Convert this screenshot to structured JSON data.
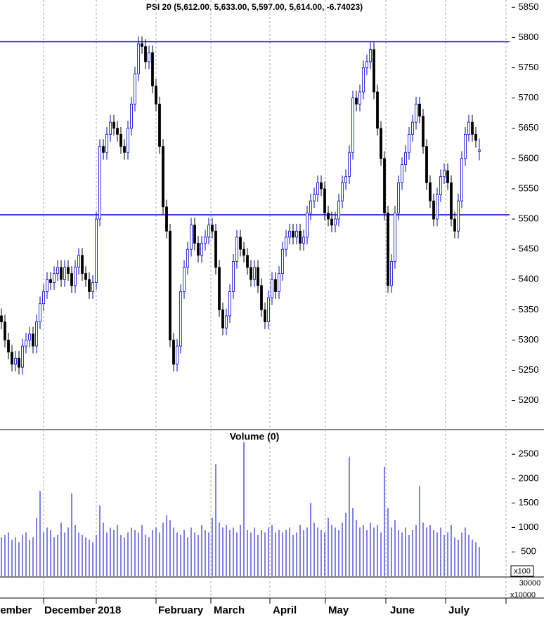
{
  "chart_data": [
    {
      "type": "candlestick",
      "title": "PSI 20 (5,612.00, 5,633.00, 5,597.00, 5,614.00, -6.74023)",
      "x_labels": [
        "vember",
        "December",
        "2018",
        "February",
        "March",
        "April",
        "May",
        "June",
        "July"
      ],
      "open": [
        5340,
        5330,
        5300,
        5280,
        5260,
        5270,
        5255,
        5290,
        5300,
        5310,
        5290,
        5330,
        5360,
        5380,
        5400,
        5395,
        5410,
        5420,
        5400,
        5420,
        5410,
        5390,
        5420,
        5440,
        5410,
        5400,
        5380,
        5395,
        5500,
        5620,
        5610,
        5640,
        5660,
        5650,
        5640,
        5620,
        5610,
        5650,
        5690,
        5740,
        5790,
        5785,
        5760,
        5775,
        5720,
        5690,
        5620,
        5520,
        5480,
        5300,
        5260,
        5290,
        5380,
        5420,
        5450,
        5490,
        5460,
        5440,
        5460,
        5470,
        5490,
        5480,
        5420,
        5350,
        5320,
        5340,
        5380,
        5430,
        5470,
        5450,
        5440,
        5420,
        5400,
        5420,
        5390,
        5350,
        5330,
        5370,
        5400,
        5380,
        5410,
        5450,
        5470,
        5480,
        5470,
        5480,
        5460,
        5470,
        5510,
        5530,
        5540,
        5560,
        5550,
        5510,
        5500,
        5490,
        5500,
        5530,
        5560,
        5570,
        5610,
        5700,
        5690,
        5710,
        5750,
        5760,
        5780,
        5710,
        5650,
        5600,
        5510,
        5390,
        5430,
        5510,
        5560,
        5590,
        5610,
        5640,
        5660,
        5690,
        5670,
        5620,
        5560,
        5530,
        5500,
        5540,
        5570,
        5580,
        5560,
        5500,
        5480,
        5530,
        5600,
        5640,
        5660,
        5640,
        5612
      ],
      "high": [
        5352,
        5342,
        5312,
        5292,
        5282,
        5282,
        5302,
        5312,
        5322,
        5322,
        5342,
        5372,
        5392,
        5412,
        5412,
        5422,
        5432,
        5432,
        5432,
        5432,
        5422,
        5432,
        5452,
        5452,
        5422,
        5412,
        5407,
        5512,
        5632,
        5632,
        5652,
        5672,
        5672,
        5662,
        5652,
        5632,
        5662,
        5702,
        5752,
        5802,
        5802,
        5797,
        5787,
        5787,
        5732,
        5702,
        5632,
        5532,
        5492,
        5312,
        5302,
        5392,
        5432,
        5462,
        5502,
        5502,
        5472,
        5472,
        5482,
        5502,
        5502,
        5492,
        5432,
        5362,
        5352,
        5392,
        5442,
        5482,
        5482,
        5462,
        5452,
        5432,
        5432,
        5432,
        5402,
        5362,
        5382,
        5412,
        5412,
        5422,
        5462,
        5482,
        5492,
        5492,
        5492,
        5492,
        5482,
        5522,
        5542,
        5552,
        5572,
        5572,
        5562,
        5522,
        5512,
        5512,
        5542,
        5572,
        5582,
        5622,
        5712,
        5712,
        5722,
        5762,
        5772,
        5792,
        5792,
        5722,
        5662,
        5612,
        5522,
        5442,
        5522,
        5572,
        5602,
        5622,
        5652,
        5672,
        5702,
        5702,
        5682,
        5632,
        5572,
        5542,
        5552,
        5582,
        5592,
        5592,
        5572,
        5512,
        5542,
        5612,
        5652,
        5672,
        5672,
        5652,
        5633
      ],
      "low": [
        5318,
        5288,
        5268,
        5248,
        5248,
        5243,
        5243,
        5278,
        5288,
        5278,
        5278,
        5318,
        5348,
        5368,
        5383,
        5383,
        5398,
        5388,
        5388,
        5398,
        5378,
        5378,
        5408,
        5398,
        5388,
        5368,
        5368,
        5383,
        5488,
        5598,
        5598,
        5628,
        5638,
        5628,
        5608,
        5598,
        5598,
        5638,
        5678,
        5728,
        5773,
        5748,
        5748,
        5708,
        5678,
        5608,
        5508,
        5468,
        5288,
        5248,
        5248,
        5278,
        5368,
        5408,
        5438,
        5448,
        5428,
        5428,
        5448,
        5458,
        5468,
        5408,
        5338,
        5308,
        5308,
        5328,
        5368,
        5418,
        5438,
        5428,
        5408,
        5388,
        5388,
        5378,
        5338,
        5318,
        5318,
        5358,
        5368,
        5368,
        5398,
        5438,
        5458,
        5458,
        5458,
        5448,
        5448,
        5458,
        5498,
        5518,
        5528,
        5538,
        5498,
        5488,
        5478,
        5478,
        5488,
        5518,
        5548,
        5558,
        5598,
        5678,
        5678,
        5698,
        5738,
        5748,
        5698,
        5638,
        5588,
        5498,
        5378,
        5378,
        5418,
        5498,
        5548,
        5578,
        5598,
        5628,
        5648,
        5658,
        5608,
        5548,
        5518,
        5488,
        5488,
        5528,
        5558,
        5548,
        5488,
        5468,
        5468,
        5518,
        5588,
        5628,
        5628,
        5618,
        5597
      ],
      "close": [
        5330,
        5300,
        5280,
        5260,
        5270,
        5255,
        5290,
        5300,
        5310,
        5290,
        5330,
        5360,
        5380,
        5400,
        5395,
        5410,
        5420,
        5400,
        5420,
        5410,
        5390,
        5420,
        5440,
        5410,
        5400,
        5380,
        5395,
        5500,
        5620,
        5610,
        5640,
        5660,
        5650,
        5640,
        5620,
        5610,
        5650,
        5690,
        5740,
        5790,
        5785,
        5760,
        5775,
        5720,
        5690,
        5620,
        5520,
        5480,
        5300,
        5260,
        5290,
        5380,
        5420,
        5450,
        5490,
        5460,
        5440,
        5460,
        5470,
        5490,
        5480,
        5420,
        5350,
        5320,
        5340,
        5380,
        5430,
        5470,
        5450,
        5440,
        5420,
        5400,
        5420,
        5390,
        5350,
        5330,
        5370,
        5400,
        5380,
        5410,
        5450,
        5470,
        5480,
        5470,
        5480,
        5460,
        5470,
        5510,
        5530,
        5540,
        5560,
        5550,
        5510,
        5500,
        5490,
        5500,
        5530,
        5560,
        5570,
        5610,
        5700,
        5690,
        5710,
        5750,
        5760,
        5780,
        5710,
        5650,
        5600,
        5510,
        5390,
        5430,
        5510,
        5560,
        5590,
        5610,
        5640,
        5660,
        5690,
        5670,
        5620,
        5560,
        5530,
        5500,
        5540,
        5570,
        5580,
        5560,
        5500,
        5480,
        5530,
        5600,
        5640,
        5660,
        5640,
        5630,
        5614
      ],
      "up_color": "#0000cc",
      "down_color": "#000000",
      "hlines": [
        5793,
        5507
      ],
      "hline_color": "#0000cc",
      "ylim": [
        5152,
        5862
      ],
      "yticks": [
        5200,
        5250,
        5300,
        5350,
        5400,
        5450,
        5500,
        5550,
        5600,
        5650,
        5700,
        5750,
        5800,
        5850
      ]
    },
    {
      "type": "bar",
      "title": "Volume (0)",
      "unit": "x100",
      "color": "#0000cc",
      "values": [
        800,
        850,
        900,
        750,
        800,
        700,
        850,
        900,
        750,
        800,
        1200,
        1750,
        900,
        1000,
        950,
        800,
        850,
        1100,
        900,
        1000,
        1700,
        1050,
        900,
        850,
        800,
        750,
        700,
        850,
        1450,
        1100,
        900,
        1000,
        950,
        1050,
        850,
        800,
        900,
        1000,
        950,
        900,
        1050,
        850,
        800,
        950,
        1000,
        900,
        1100,
        1250,
        1150,
        1000,
        900,
        850,
        950,
        800,
        1000,
        900,
        850,
        1050,
        950,
        900,
        1200,
        2300,
        1100,
        1000,
        1050,
        950,
        1000,
        900,
        1050,
        2750,
        950,
        900,
        1000,
        850,
        950,
        900,
        1000,
        1050,
        900,
        950,
        900,
        950,
        1000,
        850,
        900,
        1050,
        950,
        1000,
        1500,
        1100,
        1000,
        950,
        900,
        1200,
        1050,
        1000,
        950,
        1100,
        1300,
        2450,
        1400,
        1150,
        1000,
        1050,
        950,
        1100,
        1000,
        1050,
        900,
        2250,
        1400,
        1000,
        1150,
        950,
        900,
        1000,
        850,
        950,
        1050,
        1850,
        1100,
        1000,
        1050,
        950,
        900,
        1000,
        850,
        900,
        1050,
        800,
        750,
        900,
        1000,
        850,
        750,
        700,
        600
      ],
      "ylim": [
        0,
        3007
      ],
      "yticks": [
        500,
        1000,
        1500,
        2000,
        2500
      ],
      "sub_axis_tick": 30000,
      "sub_axis_unit": "x10000"
    }
  ]
}
